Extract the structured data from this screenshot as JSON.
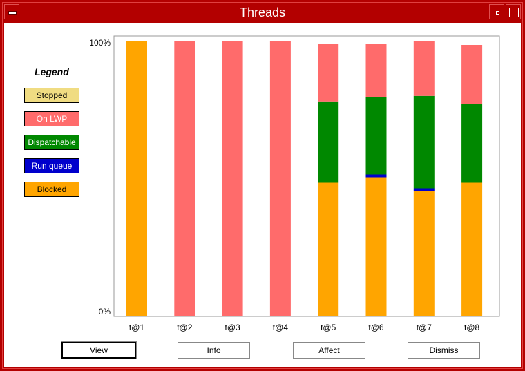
{
  "window": {
    "title": "Threads"
  },
  "legend": {
    "title": "Legend",
    "items": [
      {
        "key": "stopped",
        "label": "Stopped",
        "color": "#f0dc82",
        "text_color": "#000000"
      },
      {
        "key": "on_lwp",
        "label": "On LWP",
        "color": "#ff6b6b",
        "text_color": "#ffffff"
      },
      {
        "key": "dispatchable",
        "label": "Dispatchable",
        "color": "#008800",
        "text_color": "#ffffff"
      },
      {
        "key": "run_queue",
        "label": "Run queue",
        "color": "#0000cc",
        "text_color": "#ffffff"
      },
      {
        "key": "blocked",
        "label": "Blocked",
        "color": "#ffa500",
        "text_color": "#000000"
      }
    ]
  },
  "buttons": {
    "view": "View",
    "info": "Info",
    "affect": "Affect",
    "dismiss": "Dismiss"
  },
  "chart_data": {
    "type": "bar",
    "stacked": true,
    "categories": [
      "t@1",
      "t@2",
      "t@3",
      "t@4",
      "t@5",
      "t@6",
      "t@7",
      "t@8"
    ],
    "series": [
      {
        "name": "Blocked",
        "color": "#ffa500",
        "values": [
          100,
          0,
          0,
          0,
          48.5,
          50.5,
          45.5,
          48.5
        ]
      },
      {
        "name": "Run queue",
        "color": "#0000cc",
        "values": [
          0,
          0,
          0,
          0,
          0,
          1,
          1,
          0
        ]
      },
      {
        "name": "Dispatchable",
        "color": "#008800",
        "values": [
          0,
          0,
          0,
          0,
          29.5,
          28,
          33.5,
          28.5
        ]
      },
      {
        "name": "On LWP",
        "color": "#ff6b6b",
        "values": [
          0,
          100,
          100,
          100,
          21,
          19.5,
          20,
          21.5
        ]
      },
      {
        "name": "Stopped",
        "color": "#f0dc82",
        "values": [
          0,
          0,
          0,
          0,
          0,
          0,
          0,
          0
        ]
      }
    ],
    "ylim": [
      0,
      100
    ],
    "y_ticks": [
      "0%",
      "100%"
    ],
    "grid": false
  }
}
